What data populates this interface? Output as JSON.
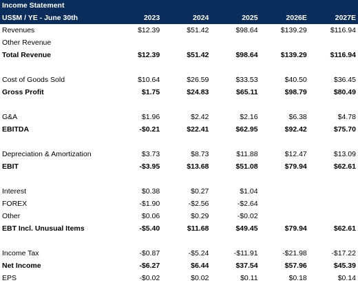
{
  "title": "Income Statement",
  "header": {
    "label": "US$M / YE - June 30th",
    "years": [
      "2023",
      "2024",
      "2025",
      "2026E",
      "2027E"
    ]
  },
  "rows": [
    {
      "label": "Revenues",
      "bold": false,
      "values": [
        "$12.39",
        "$51.42",
        "$98.64",
        "$139.29",
        "$116.94"
      ]
    },
    {
      "label": "Other Revenue",
      "bold": false,
      "values": [
        "",
        "",
        "",
        "",
        ""
      ]
    },
    {
      "label": "Total Revenue",
      "bold": true,
      "values": [
        "$12.39",
        "$51.42",
        "$98.64",
        "$139.29",
        "$116.94"
      ]
    },
    {
      "spacer": true
    },
    {
      "label": "Cost of Goods Sold",
      "bold": false,
      "values": [
        "$10.64",
        "$26.59",
        "$33.53",
        "$40.50",
        "$36.45"
      ]
    },
    {
      "label": "Gross Profit",
      "bold": true,
      "values": [
        "$1.75",
        "$24.83",
        "$65.11",
        "$98.79",
        "$80.49"
      ]
    },
    {
      "spacer": true
    },
    {
      "label": "G&A",
      "bold": false,
      "values": [
        "$1.96",
        "$2.42",
        "$2.16",
        "$6.38",
        "$4.78"
      ]
    },
    {
      "label": "EBITDA",
      "bold": true,
      "values": [
        "-$0.21",
        "$22.41",
        "$62.95",
        "$92.42",
        "$75.70"
      ]
    },
    {
      "spacer": true
    },
    {
      "label": "Depreciation & Amortization",
      "bold": false,
      "values": [
        "$3.73",
        "$8.73",
        "$11.88",
        "$12.47",
        "$13.09"
      ]
    },
    {
      "label": "EBIT",
      "bold": true,
      "values": [
        "-$3.95",
        "$13.68",
        "$51.08",
        "$79.94",
        "$62.61"
      ]
    },
    {
      "spacer": true
    },
    {
      "label": "Interest",
      "bold": false,
      "values": [
        "$0.38",
        "$0.27",
        "$1.04",
        "",
        ""
      ]
    },
    {
      "label": "FOREX",
      "bold": false,
      "values": [
        "-$1.90",
        "-$2.56",
        "-$2.64",
        "",
        ""
      ]
    },
    {
      "label": "Other",
      "bold": false,
      "values": [
        "$0.06",
        "$0.29",
        "-$0.02",
        "",
        ""
      ]
    },
    {
      "label": "EBT Incl. Unusual Items",
      "bold": true,
      "values": [
        "-$5.40",
        "$11.68",
        "$49.45",
        "$79.94",
        "$62.61"
      ]
    },
    {
      "spacer": true
    },
    {
      "label": "Income Tax",
      "bold": false,
      "values": [
        "-$0.87",
        "-$5.24",
        "-$11.91",
        "-$21.98",
        "-$17.22"
      ]
    },
    {
      "label": "Net Income",
      "bold": true,
      "values": [
        "-$6.27",
        "$6.44",
        "$37.54",
        "$57.96",
        "$45.39"
      ]
    },
    {
      "label": "EPS",
      "bold": false,
      "values": [
        "-$0.02",
        "$0.02",
        "$0.11",
        "$0.18",
        "$0.14"
      ]
    }
  ]
}
